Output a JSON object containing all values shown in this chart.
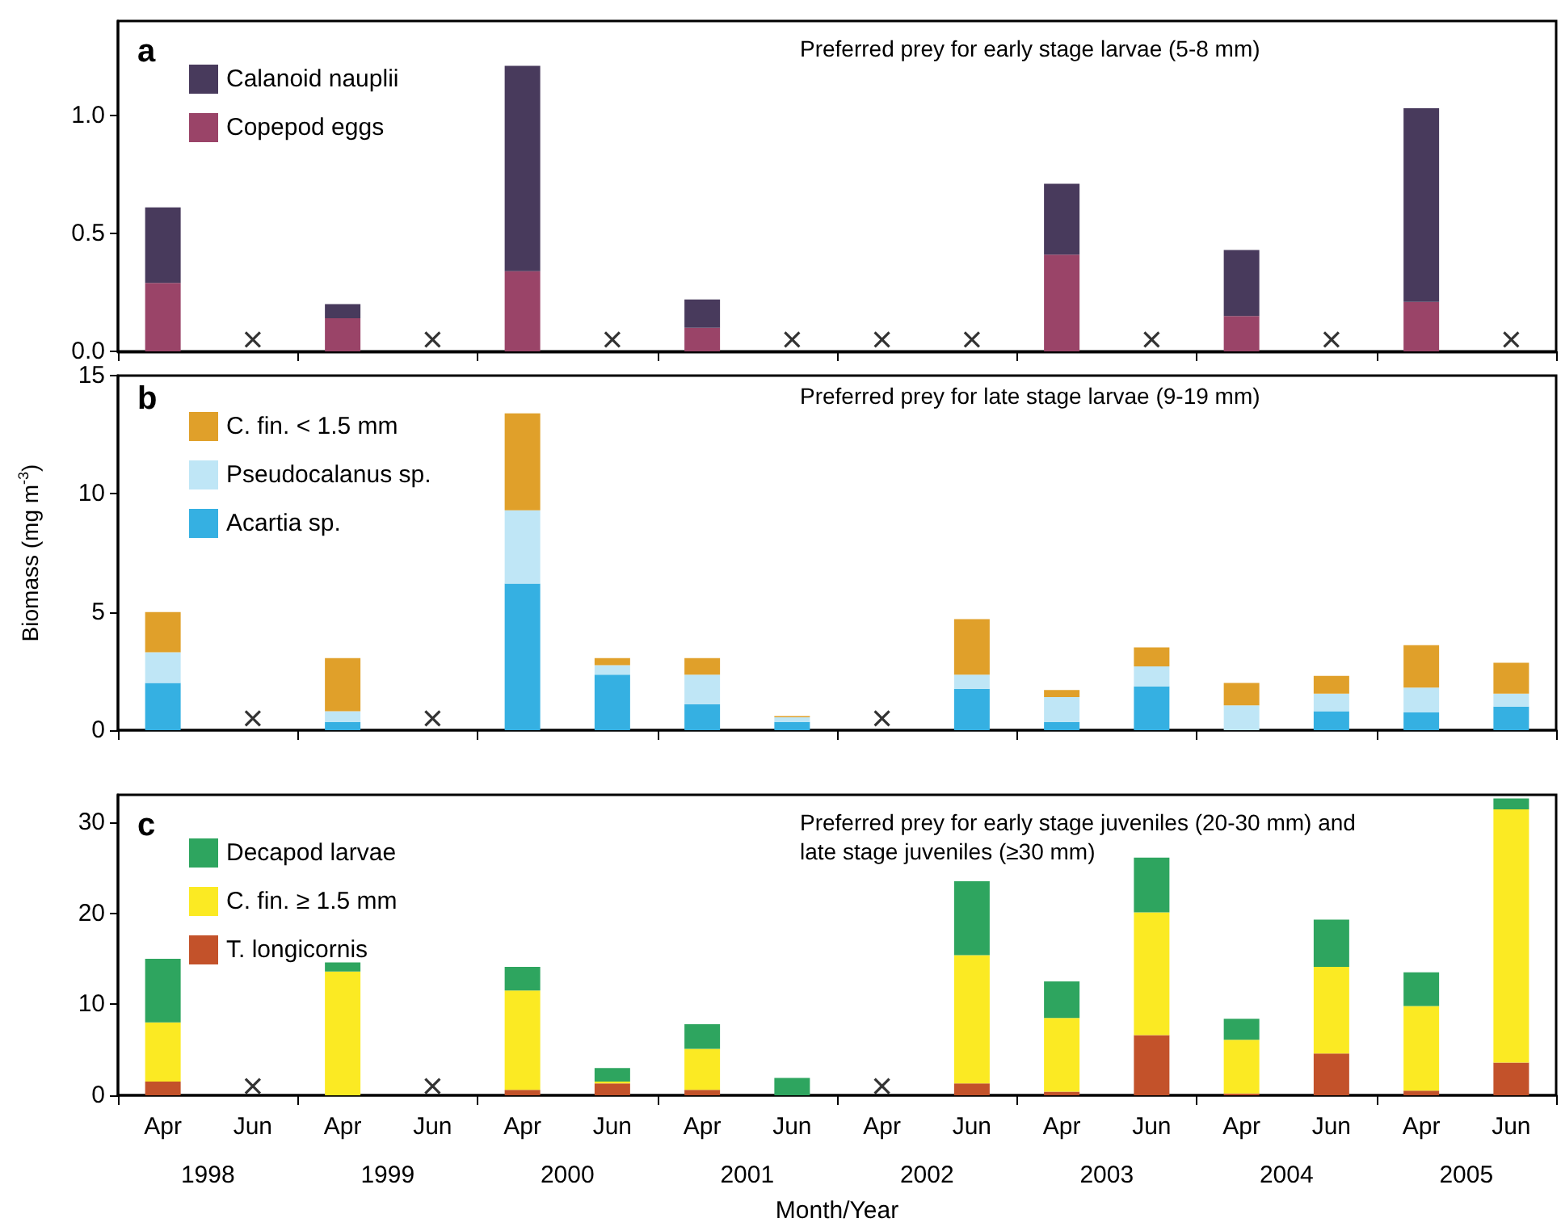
{
  "chart_data": [
    {
      "type": "bar",
      "title": "a",
      "subtitle": "Preferred prey for early stage larvae (5-8 mm)",
      "stacked": true,
      "legend": "top left",
      "tick_labels": "y",
      "grid": false,
      "categories": [
        null,
        null,
        null,
        null,
        null,
        null,
        null,
        null,
        null,
        null,
        null,
        null,
        null,
        null,
        null,
        null
      ],
      "ylim": [
        0,
        1.4
      ],
      "yticks": [
        {
          "value": 0,
          "label": "0.0"
        },
        {
          "value": 0.5,
          "label": "0.5"
        },
        {
          "value": 1,
          "label": "1.0"
        }
      ],
      "series": [
        {
          "name": "Copepod eggs",
          "color": "#9a4468",
          "values": [
            0.29,
            null,
            0.14,
            null,
            0.34,
            null,
            0.1,
            null,
            null,
            null,
            0.41,
            null,
            0.15,
            null,
            0.21,
            null
          ]
        },
        {
          "name": "Calanoid nauplii",
          "color": "#483a5c",
          "values": [
            0.32,
            null,
            0.06,
            null,
            0.87,
            null,
            0.12,
            null,
            null,
            null,
            0.3,
            null,
            0.28,
            null,
            0.82,
            null
          ]
        },
        {
          "type": "scatter",
          "marker": "cross",
          "color": "#000000",
          "values": [
            null,
            0.05,
            null,
            0.05,
            null,
            0.05,
            null,
            0.05,
            0.05,
            0.05,
            null,
            0.05,
            null,
            0.05,
            null,
            0.05
          ]
        }
      ]
    },
    {
      "type": "bar",
      "title": "b",
      "subtitle": "Preferred prey for late stage larvae (9-19 mm)",
      "ylabel": "Biomass (mg m$^{-3}$)",
      "stacked": true,
      "legend": "top left",
      "tick_labels": "y",
      "grid": false,
      "categories": [
        null,
        null,
        null,
        null,
        null,
        null,
        null,
        null,
        null,
        null,
        null,
        null,
        null,
        null,
        null,
        null
      ],
      "ylim": [
        0,
        15
      ],
      "yticks": [
        0,
        5,
        10,
        15
      ],
      "series": [
        {
          "name": "Acartia sp.",
          "color": "#35b0e2",
          "values": [
            2.0,
            null,
            0.35,
            null,
            6.2,
            2.35,
            1.1,
            0.35,
            null,
            1.75,
            0.35,
            1.85,
            0,
            0.8,
            0.75,
            1.0
          ]
        },
        {
          "name": "Pseudocalanus sp.",
          "color": "#bfe6f6",
          "values": [
            1.3,
            null,
            0.45,
            null,
            3.1,
            0.4,
            1.25,
            0.2,
            null,
            0.6,
            1.05,
            0.85,
            1.05,
            0.75,
            1.05,
            0.55
          ]
        },
        {
          "name": "C. fin. < 1.5 mm",
          "color": "#e0a02a",
          "values": [
            1.7,
            null,
            2.25,
            null,
            4.1,
            0.3,
            0.7,
            0.05,
            null,
            2.35,
            0.3,
            0.8,
            0.95,
            0.75,
            1.8,
            1.3
          ]
        },
        {
          "type": "scatter",
          "marker": "cross",
          "color": "#000000",
          "values": [
            null,
            0.5,
            null,
            0.5,
            null,
            null,
            null,
            null,
            0.5,
            null,
            null,
            null,
            null,
            null,
            null,
            null
          ]
        }
      ]
    },
    {
      "type": "bar",
      "title": "c",
      "subtitle": "Preferred prey for early stage juveniles (20-30 mm) and late stage juveniles (≥30 mm)",
      "xlabel": "Month/Year",
      "stacked": true,
      "legend": "top left",
      "grid": false,
      "annotations": [
        "1998",
        "1999",
        "2000",
        "2001",
        "2002",
        "2003",
        "2004",
        "2005"
      ],
      "categories": [
        "Apr",
        "Jun",
        "Apr",
        "Jun",
        "Apr",
        "Jun",
        "Apr",
        "Jun",
        "Apr",
        "Jun",
        "Apr",
        "Jun",
        "Apr",
        "Jun",
        "Apr",
        "Jun"
      ],
      "ylim": [
        0,
        33
      ],
      "yticks": [
        0,
        10,
        20,
        30
      ],
      "series": [
        {
          "name": "T. longicornis",
          "color": "#c3522a",
          "values": [
            1.5,
            null,
            0,
            null,
            0.6,
            1.3,
            0.6,
            0,
            null,
            1.3,
            0.4,
            6.6,
            0.2,
            4.6,
            0.5,
            3.6
          ]
        },
        {
          "name": "C. fin. ≥ 1.5 mm",
          "color": "#fbea23",
          "values": [
            6.5,
            null,
            13.6,
            null,
            10.9,
            0.2,
            4.5,
            0,
            null,
            14.1,
            8.1,
            13.5,
            5.9,
            9.5,
            9.3,
            27.8
          ]
        },
        {
          "name": "Decapod larvae",
          "color": "#2ea55f",
          "values": [
            7.0,
            null,
            1.0,
            null,
            2.6,
            1.5,
            2.7,
            1.9,
            null,
            8.1,
            4.0,
            6.0,
            2.3,
            5.2,
            3.7,
            1.2
          ]
        },
        {
          "type": "scatter",
          "marker": "cross",
          "color": "#000000",
          "values": [
            null,
            1,
            null,
            1,
            null,
            null,
            null,
            null,
            1,
            null,
            null,
            null,
            null,
            null,
            null,
            null
          ]
        }
      ]
    }
  ]
}
